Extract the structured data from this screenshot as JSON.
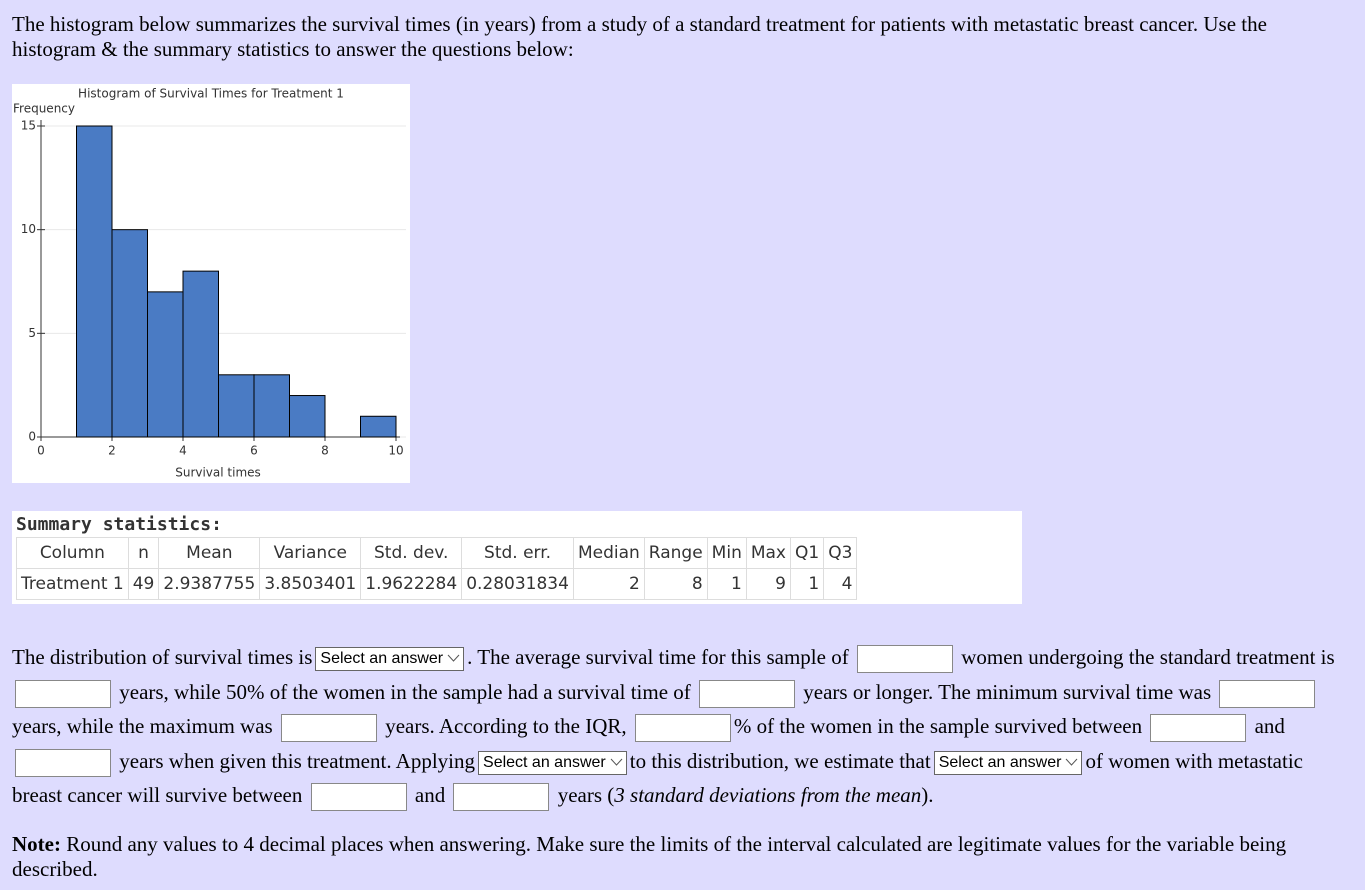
{
  "intro": "The histogram below summarizes the survival times (in years) from a study of a standard treatment for patients with metastatic breast cancer.  Use the histogram & the summary statistics to answer the questions below:",
  "chart_data": {
    "type": "histogram",
    "title": "Histogram of Survival Times for Treatment 1",
    "y_label": "Frequency",
    "x_label": "Survival times",
    "bins": [
      1,
      2,
      3,
      4,
      5,
      6,
      7,
      8,
      9,
      10
    ],
    "values": [
      15,
      10,
      7,
      8,
      3,
      3,
      2,
      0,
      1
    ],
    "color": "#4a7bc4",
    "xlim": [
      0,
      10
    ],
    "xticks": [
      0,
      2,
      4,
      6,
      8,
      10
    ],
    "ylim": [
      0,
      15
    ],
    "yticks": [
      0,
      5,
      10,
      15
    ],
    "grid": true
  },
  "summary": {
    "title": "Summary statistics:",
    "header": [
      "Column",
      "n",
      "Mean",
      "Variance",
      "Std. dev.",
      "Std. err.",
      "Median",
      "Range",
      "Min",
      "Max",
      "Q1",
      "Q3"
    ],
    "row": [
      "Treatment 1",
      49,
      2.9387755,
      3.8503401,
      1.9622284,
      0.28031834,
      2,
      8,
      1,
      9,
      1,
      4
    ]
  },
  "question": [
    "The distribution of survival times is",
    "Select an answer",
    ". The average survival time for this sample of",
    "women undergoing the standard treatment is",
    "years, while 50% of the women in the sample had a survival time of",
    "years or longer. The minimum survival time was",
    "years, while the maximum was",
    "years. According to the IQR,",
    "% of the women in the sample survived between",
    "and",
    "years when given this treatment. Applying",
    "Select an answer",
    "to this distribution, we estimate that",
    "Select an answer",
    "of women with metastatic breast cancer will survive between",
    "and",
    "years (",
    "3 standard deviations from the mean",
    ")."
  ],
  "note": {
    "label": "Note:",
    "text": "Round any values to 4 decimal places when answering. Make sure the limits of the interval calculated are legitimate values for the variable being described."
  }
}
